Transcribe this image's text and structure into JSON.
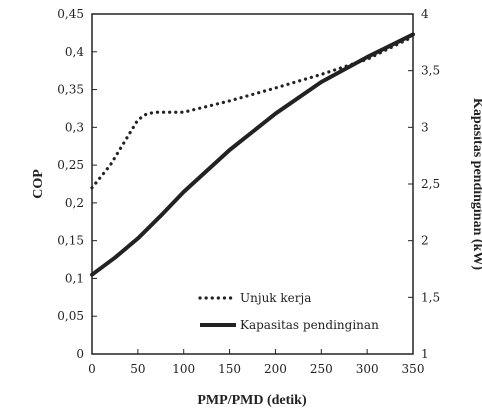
{
  "chart_data": {
    "type": "line",
    "title": "",
    "xlabel": "PMP/PMD (detik)",
    "ylabel_left": "COP",
    "ylabel_right": "Kapasitas pendinginan (kW)",
    "xlim": [
      0,
      350
    ],
    "ylim_left": [
      0,
      0.45
    ],
    "ylim_right": [
      1,
      4
    ],
    "x_ticks": [
      "0",
      "50",
      "100",
      "150",
      "200",
      "250",
      "300",
      "350"
    ],
    "y_left_ticks": [
      "0",
      "0,05",
      "0,1",
      "0,15",
      "0,2",
      "0,25",
      "0,3",
      "0,35",
      "0,4",
      "0,45"
    ],
    "y_right_ticks": [
      "1",
      "1,5",
      "2",
      "2,5",
      "3",
      "3,5",
      "4"
    ],
    "grid": false,
    "legend_position": "bottom-right",
    "series": [
      {
        "name": "Unjuk kerja",
        "axis": "left",
        "style": "dotted",
        "color": "#222222",
        "x": [
          0,
          10,
          20,
          30,
          40,
          50,
          60,
          70,
          80,
          100,
          150,
          200,
          250,
          300,
          350
        ],
        "y": [
          0.22,
          0.235,
          0.25,
          0.27,
          0.29,
          0.31,
          0.318,
          0.32,
          0.32,
          0.32,
          0.335,
          0.352,
          0.37,
          0.39,
          0.42
        ]
      },
      {
        "name": "Kapasitas pendinginan",
        "axis": "right",
        "style": "solid",
        "color": "#222222",
        "x": [
          0,
          25,
          50,
          75,
          100,
          150,
          200,
          250,
          300,
          350
        ],
        "y": [
          1.7,
          1.85,
          2.02,
          2.22,
          2.43,
          2.8,
          3.12,
          3.4,
          3.62,
          3.82
        ]
      }
    ]
  }
}
